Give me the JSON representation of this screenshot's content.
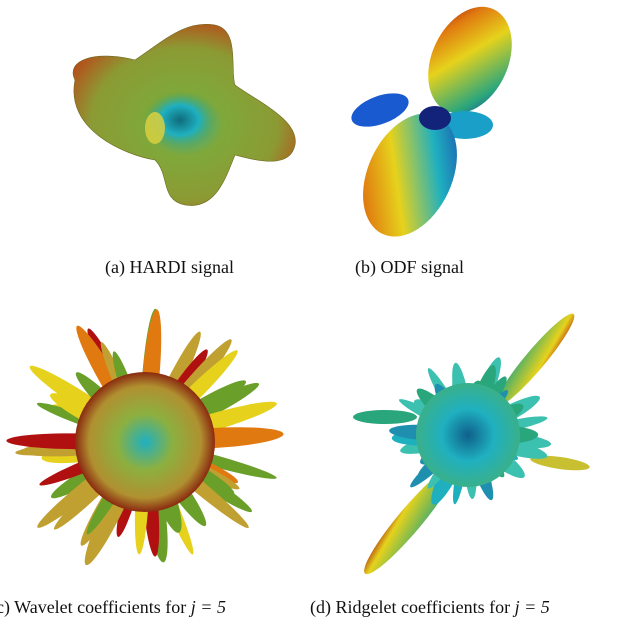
{
  "figure": {
    "panels": [
      {
        "id": "a",
        "caption": "(a)  HARDI signal",
        "rendering": "smooth 4-lobed glyph, red tips over green body with blue-cyan core"
      },
      {
        "id": "b",
        "caption": "(b)  ODF signal",
        "rendering": "elongated bi-lobed glyph, red/yellow/green lobes with blue center"
      },
      {
        "id": "c",
        "caption_prefix": "(c)  Wavelet coefficients for ",
        "caption_math": "j = 5",
        "rendering": "spiky sphere, yellow-green spikes with red tips, cyan core"
      },
      {
        "id": "d",
        "caption_prefix": "(d)  Ridgelet coefficients for ",
        "caption_math": "j = 5",
        "rendering": "cyan spiky glyph with two long yellow/red diagonal spikes"
      }
    ],
    "colors": {
      "red": "#b01010",
      "orange": "#e07a10",
      "yellow": "#e6d21c",
      "green": "#6aa02a",
      "cyan": "#1fb0c0",
      "blue": "#1a3aa8"
    }
  }
}
